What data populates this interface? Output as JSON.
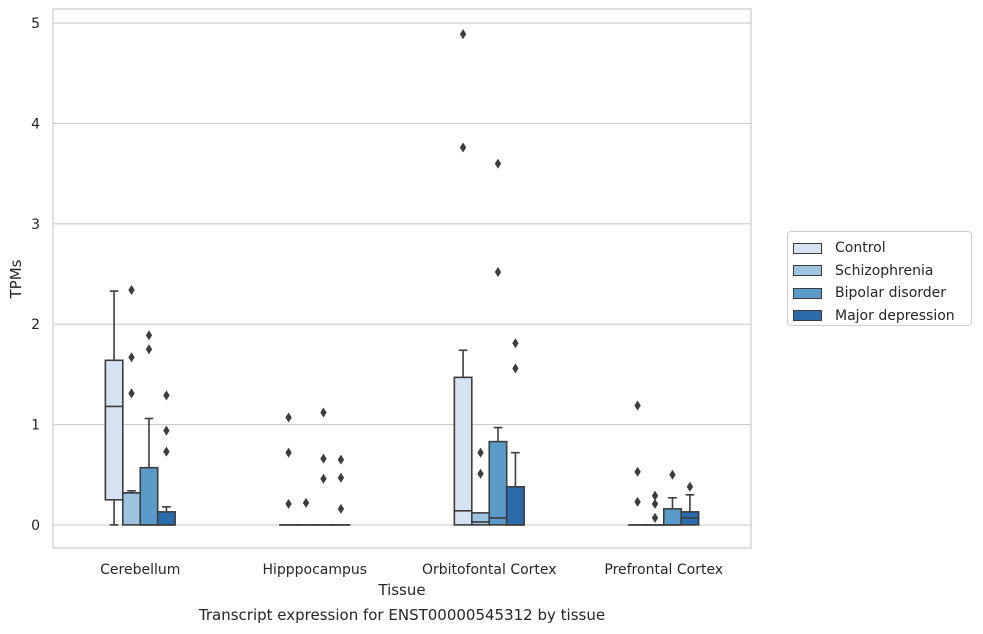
{
  "chart_data": {
    "type": "box",
    "title": "Transcript expression for ENST00000545312 by tissue",
    "xlabel": "Tissue",
    "ylabel": "TPMs",
    "ylim": [
      -0.23,
      5.14
    ],
    "yticks": [
      0,
      1,
      2,
      3,
      4,
      5
    ],
    "categories": [
      "Cerebellum",
      "Hipppocampus",
      "Orbitofontal Cortex",
      "Prefrontal Cortex"
    ],
    "grid": true,
    "legend_position": "right",
    "series": [
      {
        "name": "Control",
        "color": "#d4e2f1",
        "boxes": [
          {
            "q1": 0.25,
            "median": 1.18,
            "q3": 1.64,
            "whislo": 0.0,
            "whishi": 2.33,
            "fliers": []
          },
          {
            "q1": 0.0,
            "median": 0.0,
            "q3": 0.0,
            "whislo": 0.0,
            "whishi": 0.0,
            "fliers": [
              1.07,
              0.72,
              0.21
            ]
          },
          {
            "q1": 0.0,
            "median": 0.14,
            "q3": 1.47,
            "whislo": 0.0,
            "whishi": 1.74,
            "fliers": [
              4.89,
              3.76
            ]
          },
          {
            "q1": 0.0,
            "median": 0.0,
            "q3": 0.0,
            "whislo": 0.0,
            "whishi": 0.0,
            "fliers": [
              1.19,
              0.53,
              0.23
            ]
          }
        ]
      },
      {
        "name": "Schizophrenia",
        "color": "#9cc3df",
        "boxes": [
          {
            "q1": 0.0,
            "median": 0.32,
            "q3": 0.32,
            "whislo": 0.0,
            "whishi": 0.34,
            "fliers": [
              2.34,
              1.67,
              1.31
            ]
          },
          {
            "q1": 0.0,
            "median": 0.0,
            "q3": 0.0,
            "whislo": 0.0,
            "whishi": 0.0,
            "fliers": [
              0.22
            ]
          },
          {
            "q1": 0.0,
            "median": 0.03,
            "q3": 0.12,
            "whislo": 0.0,
            "whishi": 0.12,
            "fliers": [
              0.72,
              0.51
            ]
          },
          {
            "q1": 0.0,
            "median": 0.0,
            "q3": 0.0,
            "whislo": 0.0,
            "whishi": 0.0,
            "fliers": [
              0.29,
              0.21,
              0.07
            ]
          }
        ]
      },
      {
        "name": "Bipolar disorder",
        "color": "#5a9bca",
        "boxes": [
          {
            "q1": 0.0,
            "median": 0.0,
            "q3": 0.57,
            "whislo": 0.0,
            "whishi": 1.06,
            "fliers": [
              1.89,
              1.75
            ]
          },
          {
            "q1": 0.0,
            "median": 0.0,
            "q3": 0.0,
            "whislo": 0.0,
            "whishi": 0.0,
            "fliers": [
              1.12,
              0.66,
              0.46
            ]
          },
          {
            "q1": 0.0,
            "median": 0.07,
            "q3": 0.83,
            "whislo": 0.0,
            "whishi": 0.97,
            "fliers": [
              3.6,
              2.52
            ]
          },
          {
            "q1": 0.0,
            "median": 0.0,
            "q3": 0.16,
            "whislo": 0.0,
            "whishi": 0.27,
            "fliers": [
              0.5
            ]
          }
        ]
      },
      {
        "name": "Major depression",
        "color": "#2a6bab",
        "boxes": [
          {
            "q1": 0.0,
            "median": 0.0,
            "q3": 0.13,
            "whislo": 0.0,
            "whishi": 0.18,
            "fliers": [
              1.29,
              0.94,
              0.73
            ]
          },
          {
            "q1": 0.0,
            "median": 0.0,
            "q3": 0.0,
            "whislo": 0.0,
            "whishi": 0.0,
            "fliers": [
              0.65,
              0.47,
              0.16
            ]
          },
          {
            "q1": 0.0,
            "median": 0.0,
            "q3": 0.38,
            "whislo": 0.0,
            "whishi": 0.72,
            "fliers": [
              1.81,
              1.56
            ]
          },
          {
            "q1": 0.0,
            "median": 0.07,
            "q3": 0.13,
            "whislo": 0.0,
            "whishi": 0.3,
            "fliers": [
              0.38
            ]
          }
        ]
      }
    ]
  }
}
